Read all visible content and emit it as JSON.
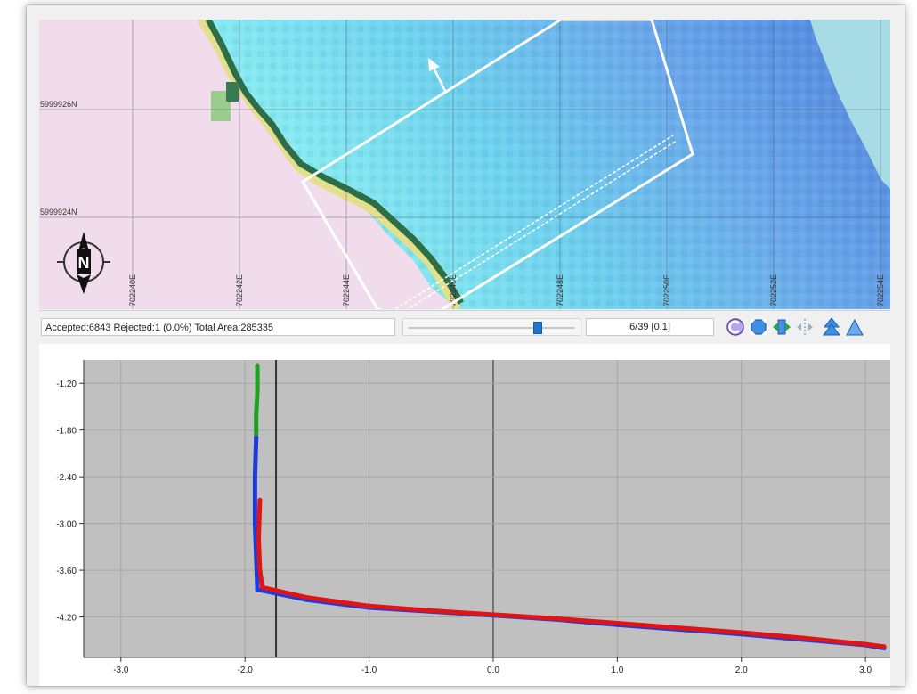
{
  "map": {
    "northing_labels": [
      "5999926N",
      "5999924N"
    ],
    "easting_labels": [
      "702240E",
      "702242E",
      "702244E",
      "702246E",
      "702248E",
      "702250E",
      "702252E",
      "702254E"
    ],
    "compass_letter": "N",
    "colors": {
      "land": "#f0dceb",
      "shallow": "#7eeaf0",
      "mid": "#6cb6ec",
      "deep": "#4f86dc",
      "far": "#a8dce4",
      "shore_dark": "#2e6e46",
      "shore_yellow": "#e4df8a"
    }
  },
  "toolbar": {
    "status_text": "Accepted:6843 Rejected:1 (0.0%) Total Area:285335",
    "page_text": "6/39 [0.1]",
    "slider_value": 6,
    "slider_max": 39,
    "icons": [
      "refresh-icon",
      "fit-extent-icon",
      "pan-horizontal-icon",
      "resize-horizontal-icon",
      "tree-up-icon",
      "tree-alt-icon"
    ]
  },
  "chart_data": {
    "type": "scatter",
    "title": "",
    "xlabel": "",
    "ylabel": "",
    "xlim": [
      -3.3,
      3.2
    ],
    "ylim": [
      -4.72,
      -0.9
    ],
    "xticks": [
      -3.0,
      -2.0,
      -1.0,
      0.0,
      1.0,
      2.0,
      3.0
    ],
    "xtick_labels": [
      "-3.0",
      "-2.0",
      "-1.0",
      "0.0",
      "1.0",
      "2.0",
      "3.0"
    ],
    "yticks": [
      -1.2,
      -1.8,
      -2.4,
      -3.0,
      -3.6,
      -4.2
    ],
    "ytick_labels": [
      "-1.20",
      "-1.80",
      "-2.40",
      "-3.00",
      "-3.60",
      "-4.20"
    ],
    "cursor_x": -1.75,
    "grid": true,
    "background": "#c0c0c0",
    "series": [
      {
        "color": "#22a022",
        "x": [
          -1.9,
          -1.9,
          -1.91,
          -1.91
        ],
        "y": [
          -0.98,
          -1.3,
          -1.6,
          -1.9
        ]
      },
      {
        "color": "#1e3cdc",
        "x": [
          -1.91,
          -1.92,
          -1.92,
          -1.9,
          -1.8,
          -1.5,
          -1.0,
          -0.5,
          0.0,
          0.5,
          1.0,
          1.5,
          2.0,
          2.5,
          3.0,
          3.15
        ],
        "y": [
          -1.9,
          -2.4,
          -3.0,
          -3.85,
          -3.88,
          -3.98,
          -4.08,
          -4.13,
          -4.18,
          -4.23,
          -4.3,
          -4.36,
          -4.42,
          -4.49,
          -4.56,
          -4.6
        ]
      },
      {
        "color": "#e01414",
        "x": [
          -1.88,
          -1.89,
          -1.88,
          -1.86,
          -1.75,
          -1.5,
          -1.0,
          -0.5,
          0.0,
          0.5,
          1.0,
          1.5,
          2.0,
          2.5,
          3.0,
          3.15
        ],
        "y": [
          -2.7,
          -3.2,
          -3.6,
          -3.82,
          -3.86,
          -3.95,
          -4.06,
          -4.12,
          -4.17,
          -4.22,
          -4.28,
          -4.34,
          -4.4,
          -4.47,
          -4.55,
          -4.58
        ]
      }
    ]
  }
}
